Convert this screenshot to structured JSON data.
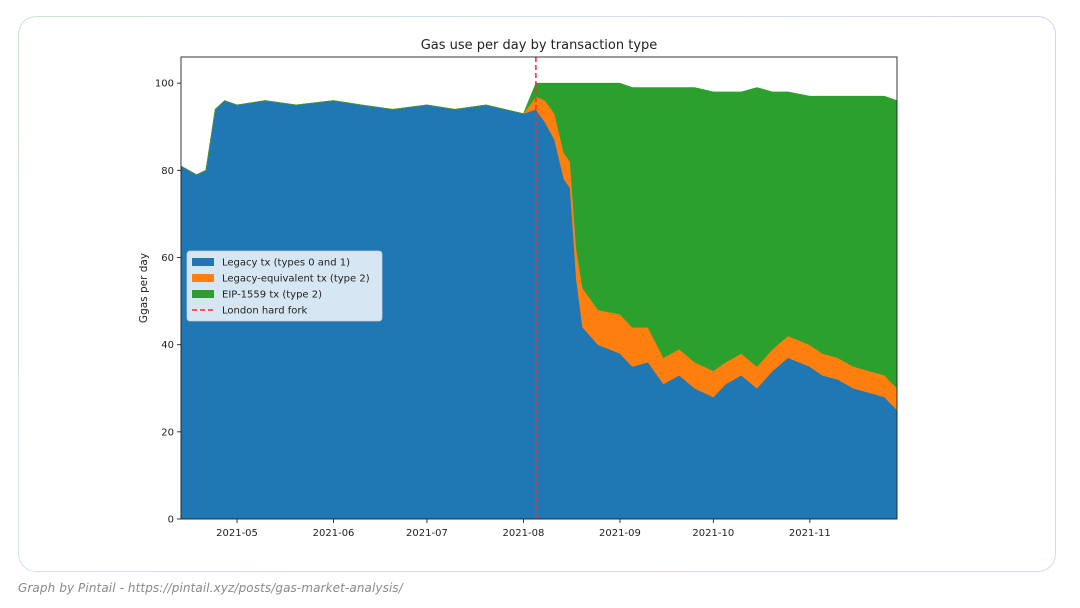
{
  "caption": "Graph by Pintail - https://pintail.xyz/posts/gas-market-analysis/",
  "chart_data": {
    "type": "area",
    "title": "Gas use per day by transaction type",
    "xlabel": "",
    "ylabel": "Ggas per day",
    "stacked": true,
    "xlim": [
      "2021-04-13",
      "2021-11-29"
    ],
    "ylim": [
      0,
      106
    ],
    "x_ticks": [
      "2021-05",
      "2021-06",
      "2021-07",
      "2021-08",
      "2021-09",
      "2021-10",
      "2021-11"
    ],
    "y_ticks": [
      0,
      20,
      40,
      60,
      80,
      100
    ],
    "grid": false,
    "legend_position": "center-left",
    "x": [
      "2021-04-13",
      "2021-04-18",
      "2021-04-21",
      "2021-04-24",
      "2021-04-27",
      "2021-05-01",
      "2021-05-10",
      "2021-05-20",
      "2021-06-01",
      "2021-06-10",
      "2021-06-20",
      "2021-07-01",
      "2021-07-10",
      "2021-07-20",
      "2021-08-01",
      "2021-08-05",
      "2021-08-08",
      "2021-08-11",
      "2021-08-14",
      "2021-08-16",
      "2021-08-18",
      "2021-08-20",
      "2021-08-25",
      "2021-09-01",
      "2021-09-05",
      "2021-09-10",
      "2021-09-15",
      "2021-09-20",
      "2021-09-25",
      "2021-10-01",
      "2021-10-05",
      "2021-10-10",
      "2021-10-15",
      "2021-10-20",
      "2021-10-25",
      "2021-11-01",
      "2021-11-05",
      "2021-11-10",
      "2021-11-15",
      "2021-11-20",
      "2021-11-25",
      "2021-11-29"
    ],
    "series": [
      {
        "name": "Legacy tx (types 0 and 1)",
        "color": "#1f77b4",
        "values": [
          81,
          79,
          80,
          94,
          96,
          95,
          96,
          95,
          96,
          95,
          94,
          95,
          94,
          95,
          93,
          94,
          91,
          87,
          78,
          76,
          55,
          44,
          40,
          38,
          35,
          36,
          31,
          33,
          30,
          28,
          31,
          33,
          30,
          34,
          37,
          35,
          33,
          32,
          30,
          29,
          28,
          25
        ]
      },
      {
        "name": "Legacy-equivalent tx (type 2)",
        "color": "#ff7f0e",
        "values": [
          0,
          0,
          0,
          0,
          0,
          0,
          0,
          0,
          0,
          0,
          0,
          0,
          0,
          0,
          0,
          3,
          5,
          6,
          6,
          6,
          7,
          9,
          8,
          9,
          9,
          8,
          6,
          6,
          6,
          6,
          5,
          5,
          5,
          5,
          5,
          5,
          5,
          5,
          5,
          5,
          5,
          5
        ]
      },
      {
        "name": "EIP-1559 tx (type 2)",
        "color": "#2ca02c",
        "values": [
          0,
          0,
          0,
          0,
          0,
          0,
          0,
          0,
          0,
          0,
          0,
          0,
          0,
          0,
          0,
          3,
          4,
          7,
          16,
          18,
          38,
          47,
          52,
          53,
          55,
          55,
          62,
          60,
          63,
          64,
          62,
          60,
          64,
          59,
          56,
          57,
          59,
          60,
          62,
          63,
          64,
          66
        ]
      }
    ],
    "annotations": [
      {
        "label": "London hard fork",
        "x": "2021-08-05",
        "style": "dashed",
        "color": "#ff2a2a"
      }
    ]
  }
}
